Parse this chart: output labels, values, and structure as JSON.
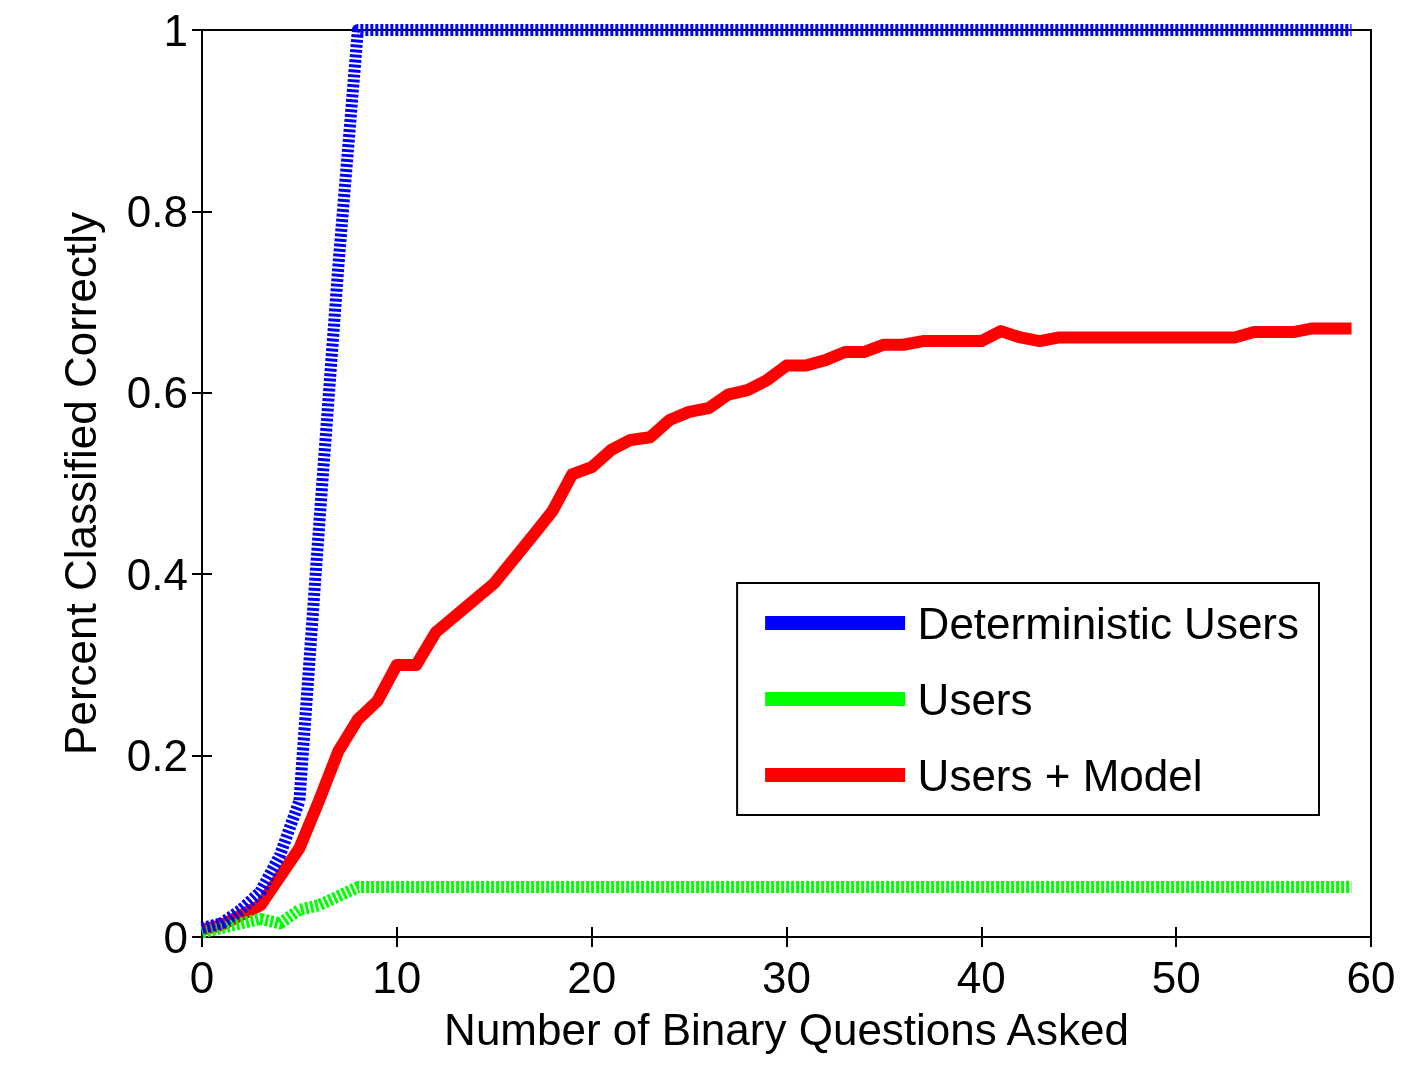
{
  "chart_data": {
    "type": "line",
    "xlabel": "Number of Binary Questions Asked",
    "ylabel": "Percent Classified Correctly",
    "xlim": [
      0,
      60
    ],
    "xticks": [
      0,
      10,
      20,
      30,
      40,
      50,
      60
    ],
    "ylim": [
      0,
      1
    ],
    "yticks": [
      0,
      0.2,
      0.4,
      0.6,
      0.8,
      1
    ],
    "grid": false,
    "legend": "right",
    "marker": "none",
    "series": [
      {
        "name": "Deterministic Users",
        "color": "#0000ff",
        "line_style": "dashed",
        "x": [
          0,
          1,
          2,
          3,
          4,
          5,
          6,
          7,
          8,
          59
        ],
        "values": [
          0.01,
          0.015,
          0.03,
          0.05,
          0.09,
          0.15,
          0.45,
          0.74,
          1,
          1
        ]
      },
      {
        "name": "Users",
        "color": "#00ff00",
        "line_style": "dashed",
        "x": [
          0,
          1,
          2,
          3,
          4,
          5,
          6,
          7,
          8,
          59
        ],
        "values": [
          0.005,
          0.01,
          0.015,
          0.02,
          0.015,
          0.03,
          0.035,
          0.045,
          0.055,
          0.055
        ]
      },
      {
        "name": "Users + Model",
        "color": "#ff0000",
        "line_style": "solid",
        "x": [
          0,
          1,
          3,
          5,
          6,
          7,
          8,
          9,
          10,
          11,
          12,
          15,
          17,
          18,
          19,
          20,
          21,
          22,
          23,
          24,
          25,
          26,
          27,
          28,
          29,
          30,
          31,
          32,
          33,
          34,
          35,
          36,
          37,
          40,
          41,
          42,
          43,
          44,
          53,
          54,
          56,
          57,
          59
        ],
        "values": [
          0.008,
          0.013,
          0.035,
          0.098,
          0.15,
          0.205,
          0.24,
          0.26,
          0.3,
          0.3,
          0.336,
          0.39,
          0.443,
          0.47,
          0.51,
          0.518,
          0.537,
          0.548,
          0.551,
          0.57,
          0.579,
          0.583,
          0.598,
          0.603,
          0.614,
          0.63,
          0.63,
          0.636,
          0.645,
          0.645,
          0.653,
          0.653,
          0.657,
          0.657,
          0.668,
          0.661,
          0.657,
          0.661,
          0.661,
          0.667,
          0.667,
          0.671,
          0.671
        ]
      }
    ]
  }
}
